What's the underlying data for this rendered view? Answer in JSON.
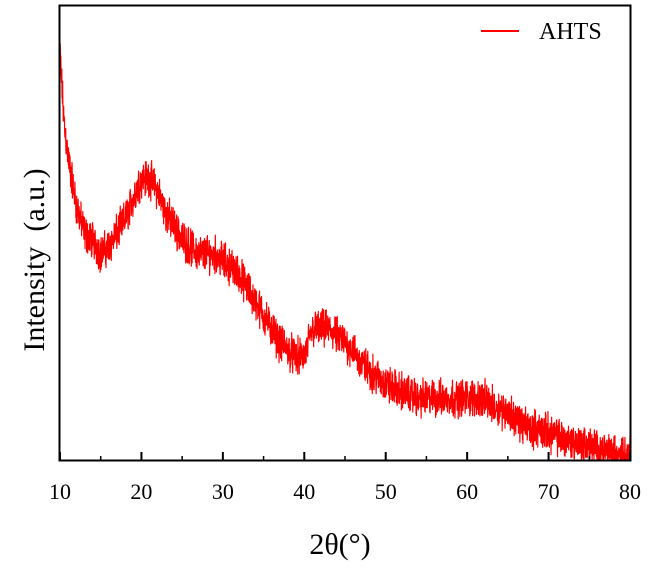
{
  "chart_data": {
    "type": "line",
    "title": "",
    "xlabel": "2θ(°)",
    "ylabel": "Intensity  (a.u.)",
    "xlim": [
      10,
      80
    ],
    "xticks": [
      10,
      20,
      30,
      40,
      50,
      60,
      70,
      80
    ],
    "xtick_labels": [
      "10",
      "20",
      "30",
      "40",
      "50",
      "60",
      "70",
      "80"
    ],
    "yticks_shown": false,
    "grid": false,
    "legend": {
      "position": "top-right"
    },
    "series": [
      {
        "name": "AHTS",
        "color": "#ff0000",
        "profile_x": [
          10,
          10.5,
          11,
          12,
          13,
          14,
          15,
          16,
          17,
          18,
          19,
          20,
          21,
          22,
          23,
          24,
          25,
          26,
          27,
          28,
          29,
          30,
          31,
          32,
          33,
          34,
          35,
          36,
          37,
          38,
          39,
          40,
          41,
          42,
          43,
          44,
          45,
          46,
          47,
          48,
          50,
          52,
          54,
          56,
          58,
          60,
          62,
          63,
          65,
          67,
          70,
          72,
          75,
          78,
          80
        ],
        "profile_y": [
          0.59,
          0.49,
          0.44,
          0.37,
          0.33,
          0.32,
          0.3,
          0.31,
          0.33,
          0.35,
          0.38,
          0.41,
          0.41,
          0.39,
          0.36,
          0.34,
          0.32,
          0.31,
          0.3,
          0.3,
          0.3,
          0.29,
          0.28,
          0.27,
          0.25,
          0.23,
          0.21,
          0.19,
          0.17,
          0.16,
          0.15,
          0.15,
          0.19,
          0.19,
          0.19,
          0.18,
          0.17,
          0.16,
          0.14,
          0.13,
          0.11,
          0.1,
          0.09,
          0.09,
          0.09,
          0.09,
          0.09,
          0.08,
          0.07,
          0.05,
          0.04,
          0.03,
          0.02,
          0.01,
          0.01
        ],
        "ylim": [
          0,
          0.66
        ],
        "noise_amplitude": 0.025
      }
    ]
  }
}
